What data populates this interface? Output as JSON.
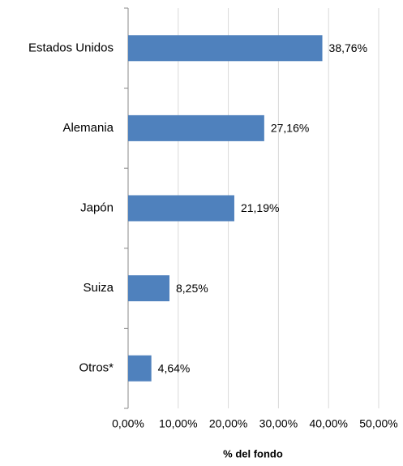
{
  "chart_data": {
    "type": "bar",
    "orientation": "horizontal",
    "categories": [
      "Estados Unidos",
      "Alemania",
      "Japón",
      "Suiza",
      "Otros*"
    ],
    "values": [
      38.76,
      27.16,
      21.19,
      8.25,
      4.64
    ],
    "value_labels": [
      "38,76%",
      "27,16%",
      "21,19%",
      "8,25%",
      "4,64%"
    ],
    "color": "#4f81bd",
    "xlabel": "% del fondo",
    "xlim": [
      0,
      50
    ],
    "xticks": [
      {
        "value": 0,
        "label": "0,00%"
      },
      {
        "value": 10,
        "label": "10,00%"
      },
      {
        "value": 20,
        "label": "20,00%"
      },
      {
        "value": 30,
        "label": "30,00%"
      },
      {
        "value": 40,
        "label": "40,00%"
      },
      {
        "value": 50,
        "label": "50,00%"
      }
    ],
    "grid": true
  }
}
